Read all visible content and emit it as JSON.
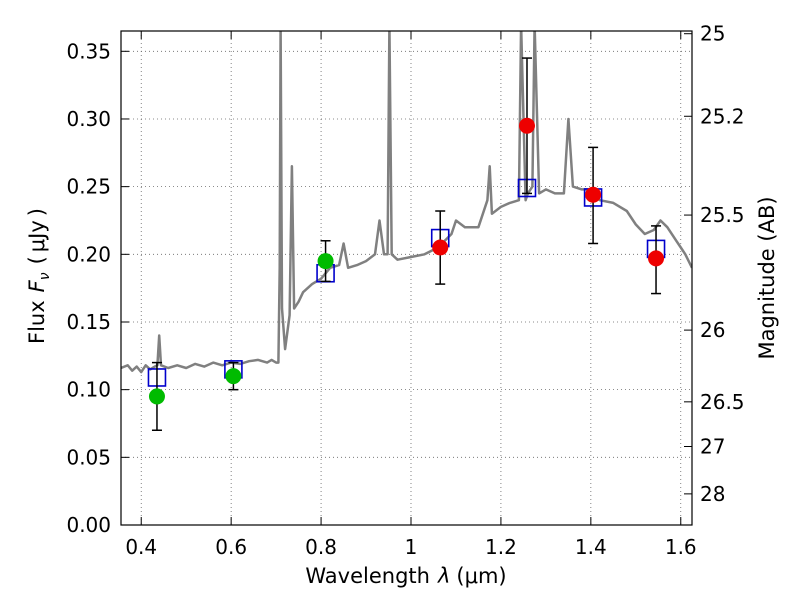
{
  "chart_data": {
    "type": "scatter",
    "xlabel": "Wavelength",
    "xlabel_symbol": "λ",
    "xlabel_unit": "(μm)",
    "ylabel": "Flux",
    "ylabel_symbol": "F",
    "ylabel_subscript": "ν",
    "ylabel_unit": "μJy",
    "ylabel_right": "Magnitude (AB)",
    "xlim": [
      0.355,
      1.625
    ],
    "ylim": [
      0,
      0.365
    ],
    "grid": true,
    "x_ticks": [
      {
        "value": 0.4,
        "label": "0.4"
      },
      {
        "value": 0.6,
        "label": "0.6"
      },
      {
        "value": 0.8,
        "label": "0.8"
      },
      {
        "value": 1.0,
        "label": "1"
      },
      {
        "value": 1.2,
        "label": "1.2"
      },
      {
        "value": 1.4,
        "label": "1.4"
      },
      {
        "value": 1.6,
        "label": "1.6"
      }
    ],
    "y_ticks": [
      {
        "value": 0.0,
        "label": "0.00"
      },
      {
        "value": 0.05,
        "label": "0.05"
      },
      {
        "value": 0.1,
        "label": "0.10"
      },
      {
        "value": 0.15,
        "label": "0.15"
      },
      {
        "value": 0.2,
        "label": "0.20"
      },
      {
        "value": 0.25,
        "label": "0.25"
      },
      {
        "value": 0.3,
        "label": "0.30"
      },
      {
        "value": 0.35,
        "label": "0.35"
      }
    ],
    "right_ticks": [
      {
        "flux": 0.363,
        "label": "25"
      },
      {
        "flux": 0.302,
        "label": "25.2"
      },
      {
        "flux": 0.229,
        "label": "25.5"
      },
      {
        "flux": 0.144,
        "label": "26"
      },
      {
        "flux": 0.091,
        "label": "26.5"
      },
      {
        "flux": 0.058,
        "label": "27"
      },
      {
        "flux": 0.023,
        "label": "28"
      }
    ],
    "colors": {
      "spectrum": "#808080",
      "model": "#0000cc",
      "green": "#00bb00",
      "red": "#ee0000",
      "errorbar": "#000000",
      "grid": "#666666"
    },
    "spectrum": [
      [
        0.355,
        0.116
      ],
      [
        0.37,
        0.118
      ],
      [
        0.38,
        0.114
      ],
      [
        0.39,
        0.117
      ],
      [
        0.4,
        0.113
      ],
      [
        0.41,
        0.118
      ],
      [
        0.42,
        0.115
      ],
      [
        0.43,
        0.117
      ],
      [
        0.436,
        0.118
      ],
      [
        0.44,
        0.14
      ],
      [
        0.444,
        0.118
      ],
      [
        0.46,
        0.116
      ],
      [
        0.48,
        0.118
      ],
      [
        0.5,
        0.116
      ],
      [
        0.52,
        0.119
      ],
      [
        0.54,
        0.117
      ],
      [
        0.56,
        0.12
      ],
      [
        0.58,
        0.118
      ],
      [
        0.6,
        0.12
      ],
      [
        0.62,
        0.119
      ],
      [
        0.64,
        0.121
      ],
      [
        0.66,
        0.122
      ],
      [
        0.68,
        0.12
      ],
      [
        0.69,
        0.122
      ],
      [
        0.7,
        0.12
      ],
      [
        0.705,
        0.12
      ],
      [
        0.708,
        0.19
      ],
      [
        0.71,
        0.37
      ],
      [
        0.713,
        0.16
      ],
      [
        0.72,
        0.13
      ],
      [
        0.73,
        0.155
      ],
      [
        0.735,
        0.265
      ],
      [
        0.74,
        0.16
      ],
      [
        0.75,
        0.165
      ],
      [
        0.76,
        0.172
      ],
      [
        0.78,
        0.178
      ],
      [
        0.8,
        0.182
      ],
      [
        0.82,
        0.19
      ],
      [
        0.84,
        0.192
      ],
      [
        0.85,
        0.208
      ],
      [
        0.86,
        0.19
      ],
      [
        0.88,
        0.192
      ],
      [
        0.9,
        0.195
      ],
      [
        0.92,
        0.2
      ],
      [
        0.93,
        0.225
      ],
      [
        0.94,
        0.2
      ],
      [
        0.948,
        0.2
      ],
      [
        0.952,
        0.37
      ],
      [
        0.957,
        0.2
      ],
      [
        0.97,
        0.196
      ],
      [
        1.0,
        0.198
      ],
      [
        1.03,
        0.2
      ],
      [
        1.06,
        0.205
      ],
      [
        1.09,
        0.215
      ],
      [
        1.1,
        0.225
      ],
      [
        1.12,
        0.22
      ],
      [
        1.15,
        0.22
      ],
      [
        1.17,
        0.24
      ],
      [
        1.175,
        0.265
      ],
      [
        1.18,
        0.23
      ],
      [
        1.2,
        0.235
      ],
      [
        1.22,
        0.238
      ],
      [
        1.24,
        0.24
      ],
      [
        1.245,
        0.37
      ],
      [
        1.255,
        0.24
      ],
      [
        1.26,
        0.245
      ],
      [
        1.27,
        0.25
      ],
      [
        1.275,
        0.37
      ],
      [
        1.285,
        0.245
      ],
      [
        1.3,
        0.248
      ],
      [
        1.32,
        0.245
      ],
      [
        1.34,
        0.245
      ],
      [
        1.35,
        0.3
      ],
      [
        1.36,
        0.25
      ],
      [
        1.38,
        0.248
      ],
      [
        1.4,
        0.248
      ],
      [
        1.42,
        0.24
      ],
      [
        1.45,
        0.238
      ],
      [
        1.48,
        0.232
      ],
      [
        1.5,
        0.222
      ],
      [
        1.52,
        0.215
      ],
      [
        1.54,
        0.218
      ],
      [
        1.555,
        0.225
      ],
      [
        1.57,
        0.22
      ],
      [
        1.59,
        0.21
      ],
      [
        1.6,
        0.205
      ],
      [
        1.61,
        0.2
      ],
      [
        1.625,
        0.19
      ]
    ],
    "model_points": [
      {
        "x": 0.435,
        "y": 0.109
      },
      {
        "x": 0.605,
        "y": 0.115
      },
      {
        "x": 0.81,
        "y": 0.186
      },
      {
        "x": 1.065,
        "y": 0.212
      },
      {
        "x": 1.258,
        "y": 0.249
      },
      {
        "x": 1.405,
        "y": 0.242
      },
      {
        "x": 1.545,
        "y": 0.204
      }
    ],
    "observed_points": [
      {
        "x": 0.435,
        "y": 0.095,
        "err_lo": 0.07,
        "err_hi": 0.12,
        "color": "green"
      },
      {
        "x": 0.605,
        "y": 0.11,
        "err_lo": 0.1,
        "err_hi": 0.12,
        "color": "green"
      },
      {
        "x": 0.81,
        "y": 0.195,
        "err_lo": 0.18,
        "err_hi": 0.21,
        "color": "green"
      },
      {
        "x": 1.065,
        "y": 0.205,
        "err_lo": 0.178,
        "err_hi": 0.232,
        "color": "red"
      },
      {
        "x": 1.258,
        "y": 0.295,
        "err_lo": 0.245,
        "err_hi": 0.345,
        "color": "red"
      },
      {
        "x": 1.405,
        "y": 0.244,
        "err_lo": 0.208,
        "err_hi": 0.279,
        "color": "red"
      },
      {
        "x": 1.545,
        "y": 0.197,
        "err_lo": 0.171,
        "err_hi": 0.221,
        "color": "red"
      }
    ]
  }
}
